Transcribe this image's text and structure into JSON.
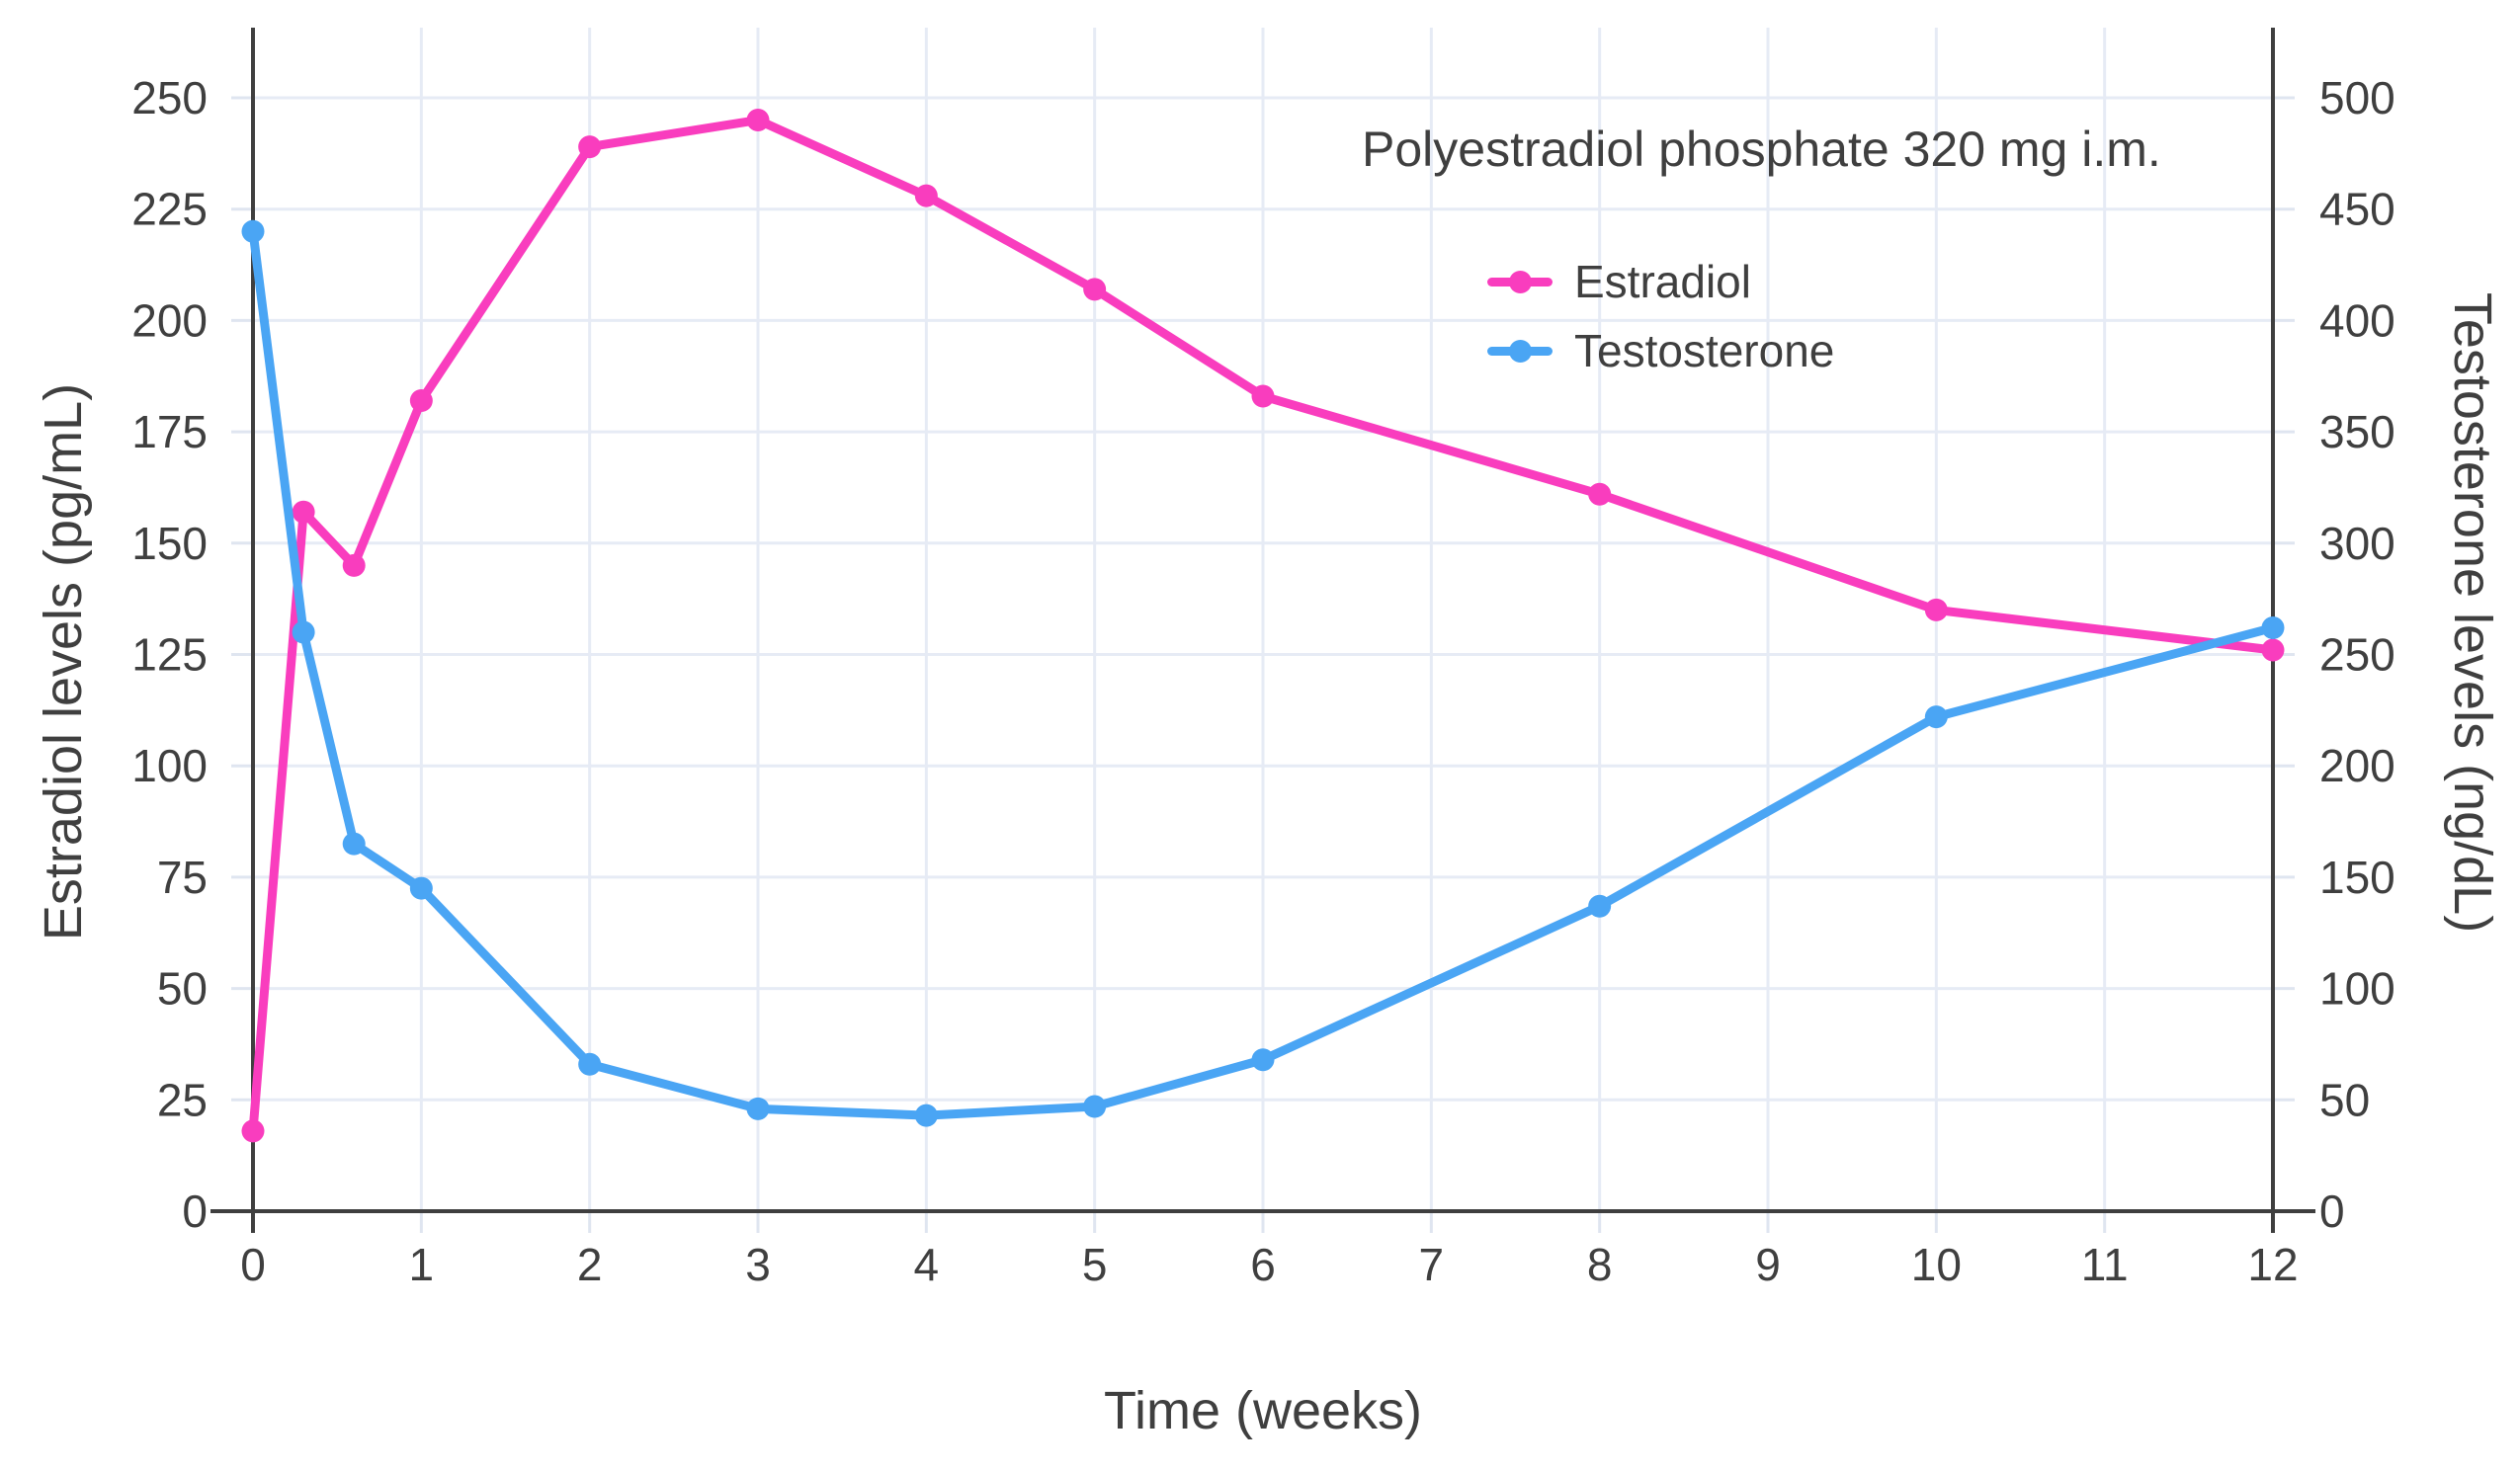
{
  "chart_data": {
    "type": "line",
    "title": "Polyestradiol phosphate 320 mg i.m.",
    "xlabel": "Time (weeks)",
    "ylabel_left": "Estradiol levels (pg/mL)",
    "ylabel_right": "Testosterone levels (ng/dL)",
    "x": [
      0,
      0.3,
      0.6,
      1,
      2,
      3,
      4,
      5,
      6,
      8,
      10,
      12
    ],
    "series": [
      {
        "name": "Estradiol",
        "axis": "left",
        "unit": "pg/mL",
        "color": "#f93dbe",
        "values": [
          18,
          157,
          145,
          182,
          239,
          245,
          228,
          207,
          183,
          161,
          135,
          126
        ]
      },
      {
        "name": "Testosterone",
        "axis": "right",
        "unit": "ng/dL",
        "color": "#4aa5f4",
        "values": [
          440,
          260,
          165,
          145,
          66,
          46,
          43,
          47,
          68,
          137,
          222,
          262
        ]
      }
    ],
    "x_ticks": [
      0,
      1,
      2,
      3,
      4,
      5,
      6,
      7,
      8,
      9,
      10,
      11,
      12
    ],
    "y_left": {
      "min": 0,
      "max": 250,
      "step": 25
    },
    "y_right": {
      "min": 0,
      "max": 500,
      "step": 50
    },
    "xlim": [
      0,
      12
    ],
    "grid": true,
    "legend_position": "upper-right",
    "colors": {
      "axis_line": "#3f3f3f",
      "grid_line": "#e6ebf5",
      "tick_mark": "#dfe5f0",
      "text": "#3f3f3f",
      "background": "#ffffff"
    }
  }
}
